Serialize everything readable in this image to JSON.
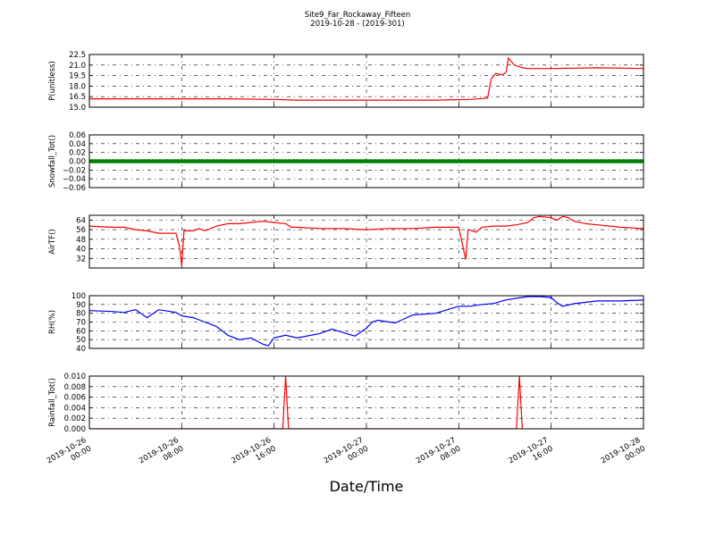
{
  "figure": {
    "title_line1": "Site9_Far_Rockaway_Fifteen",
    "title_line2": "2019-10-28 - (2019-301)",
    "xlabel": "Date/Time"
  },
  "x_ticks": [
    {
      "value": "2019-10-26 00:00",
      "line1": "2019-10-26",
      "line2": "00:00"
    },
    {
      "value": "2019-10-26 08:00",
      "line1": "2019-10-26",
      "line2": "08:00"
    },
    {
      "value": "2019-10-26 16:00",
      "line1": "2019-10-26",
      "line2": "16:00"
    },
    {
      "value": "2019-10-27 00:00",
      "line1": "2019-10-27",
      "line2": "00:00"
    },
    {
      "value": "2019-10-27 08:00",
      "line1": "2019-10-27",
      "line2": "08:00"
    },
    {
      "value": "2019-10-27 16:00",
      "line1": "2019-10-27",
      "line2": "16:00"
    },
    {
      "value": "2019-10-28 00:00",
      "line1": "2019-10-28",
      "line2": "00:00"
    }
  ],
  "chart_data": [
    {
      "type": "line",
      "ylabel": "P(unitless)",
      "color": "#ff0000",
      "ylim": [
        15.0,
        22.5
      ],
      "yticks": [
        15.0,
        16.5,
        18.0,
        19.5,
        21.0,
        22.5
      ],
      "ytick_labels": [
        "15.0",
        "16.5",
        "18.0",
        "19.5",
        "21.0",
        "22.5"
      ],
      "grid": true,
      "series": [
        {
          "points": [
            [
              0,
              16.2
            ],
            [
              4,
              16.2
            ],
            [
              8,
              16.2
            ],
            [
              12,
              16.2
            ],
            [
              16,
              16.1
            ],
            [
              18,
              16.0
            ],
            [
              20,
              16.0
            ],
            [
              24,
              16.0
            ],
            [
              30,
              16.0
            ],
            [
              33,
              16.1
            ],
            [
              34.5,
              16.3
            ],
            [
              34.8,
              19.0
            ],
            [
              35.2,
              19.8
            ],
            [
              35.8,
              19.6
            ],
            [
              36.1,
              20.0
            ],
            [
              36.3,
              22.0
            ],
            [
              36.8,
              21.0
            ],
            [
              37.5,
              20.6
            ],
            [
              38,
              20.5
            ],
            [
              40,
              20.5
            ],
            [
              44,
              20.6
            ],
            [
              48,
              20.5
            ]
          ]
        }
      ]
    },
    {
      "type": "scatter",
      "ylabel": "Snowfall_Tot()",
      "color": "#008000",
      "ylim": [
        -0.06,
        0.06
      ],
      "yticks": [
        -0.06,
        -0.04,
        -0.02,
        0.0,
        0.02,
        0.04,
        0.06
      ],
      "ytick_labels": [
        "−0.06",
        "−0.04",
        "−0.02",
        "0.00",
        "0.02",
        "0.04",
        "0.06"
      ],
      "grid": true,
      "series": [
        {
          "constant": 0.0,
          "x_range": [
            0,
            48
          ],
          "x_step": 0.25
        }
      ]
    },
    {
      "type": "line",
      "ylabel": "AirTF()",
      "color": "#ff0000",
      "ylim": [
        24,
        68
      ],
      "yticks": [
        32,
        40,
        48,
        56,
        64
      ],
      "ytick_labels": [
        "32",
        "40",
        "48",
        "56",
        "64"
      ],
      "grid": true,
      "series": [
        {
          "points": [
            [
              0,
              59
            ],
            [
              2,
              58
            ],
            [
              3,
              58
            ],
            [
              4,
              56
            ],
            [
              5,
              55
            ],
            [
              6,
              53
            ],
            [
              7.5,
              53
            ],
            [
              7.8,
              42
            ],
            [
              8,
              26
            ],
            [
              8.2,
              55
            ],
            [
              9,
              55
            ],
            [
              9.5,
              57
            ],
            [
              10,
              55
            ],
            [
              11,
              59
            ],
            [
              12,
              61
            ],
            [
              13,
              61
            ],
            [
              14,
              62
            ],
            [
              15,
              63
            ],
            [
              16,
              62
            ],
            [
              17,
              61
            ],
            [
              17.5,
              58
            ],
            [
              18,
              58
            ],
            [
              20,
              57
            ],
            [
              22,
              57
            ],
            [
              24,
              56
            ],
            [
              26,
              57
            ],
            [
              28,
              57
            ],
            [
              30,
              58
            ],
            [
              32,
              58
            ],
            [
              32.4,
              40
            ],
            [
              32.6,
              31
            ],
            [
              32.8,
              56
            ],
            [
              33.5,
              54
            ],
            [
              34,
              58
            ],
            [
              35,
              59
            ],
            [
              36,
              59
            ],
            [
              37,
              60
            ],
            [
              38,
              62
            ],
            [
              38.5,
              66
            ],
            [
              39,
              67
            ],
            [
              40,
              66
            ],
            [
              40.5,
              64
            ],
            [
              41,
              67
            ],
            [
              41.5,
              66
            ],
            [
              42,
              63
            ],
            [
              43,
              61
            ],
            [
              44,
              60
            ],
            [
              46,
              58
            ],
            [
              48,
              57
            ]
          ]
        }
      ]
    },
    {
      "type": "line",
      "ylabel": "RH(%)",
      "color": "#0000ff",
      "ylim": [
        40,
        100
      ],
      "yticks": [
        40,
        50,
        60,
        70,
        80,
        90,
        100
      ],
      "ytick_labels": [
        "40",
        "50",
        "60",
        "70",
        "80",
        "90",
        "100"
      ],
      "grid": true,
      "series": [
        {
          "points": [
            [
              0,
              83
            ],
            [
              2,
              82
            ],
            [
              3,
              81
            ],
            [
              4,
              84
            ],
            [
              5,
              75
            ],
            [
              6,
              84
            ],
            [
              7.5,
              81
            ],
            [
              8,
              77
            ],
            [
              9,
              75
            ],
            [
              10,
              70
            ],
            [
              11,
              65
            ],
            [
              12,
              55
            ],
            [
              13,
              50
            ],
            [
              14,
              52
            ],
            [
              15,
              45
            ],
            [
              15.5,
              43
            ],
            [
              16,
              52
            ],
            [
              17,
              55
            ],
            [
              18,
              52
            ],
            [
              20,
              57
            ],
            [
              21,
              62
            ],
            [
              22,
              58
            ],
            [
              23,
              54
            ],
            [
              24,
              63
            ],
            [
              24.5,
              70
            ],
            [
              25,
              72
            ],
            [
              26,
              70
            ],
            [
              26.5,
              69
            ],
            [
              27,
              72
            ],
            [
              28,
              78
            ],
            [
              30,
              80
            ],
            [
              31,
              84
            ],
            [
              32,
              88
            ],
            [
              33,
              88
            ],
            [
              34,
              90
            ],
            [
              35,
              91
            ],
            [
              36,
              95
            ],
            [
              37,
              97
            ],
            [
              38,
              99
            ],
            [
              39,
              99
            ],
            [
              40,
              98
            ],
            [
              40.5,
              92
            ],
            [
              41,
              88
            ],
            [
              42,
              91
            ],
            [
              44,
              94
            ],
            [
              46,
              94
            ],
            [
              48,
              95
            ]
          ]
        }
      ]
    },
    {
      "type": "line",
      "ylabel": "Rainfall_Tot()",
      "color": "#ff0000",
      "ylim": [
        0,
        0.01
      ],
      "yticks": [
        0.0,
        0.002,
        0.004,
        0.006,
        0.008,
        0.01
      ],
      "ytick_labels": [
        "0.000",
        "0.002",
        "0.004",
        "0.006",
        "0.008",
        "0.010"
      ],
      "grid": true,
      "series": [
        {
          "points": [
            [
              0,
              0
            ],
            [
              16.75,
              0
            ],
            [
              17,
              0.01
            ],
            [
              17.25,
              0
            ],
            [
              37,
              0
            ],
            [
              37.25,
              0.01
            ],
            [
              37.5,
              0
            ]
          ]
        }
      ]
    }
  ]
}
